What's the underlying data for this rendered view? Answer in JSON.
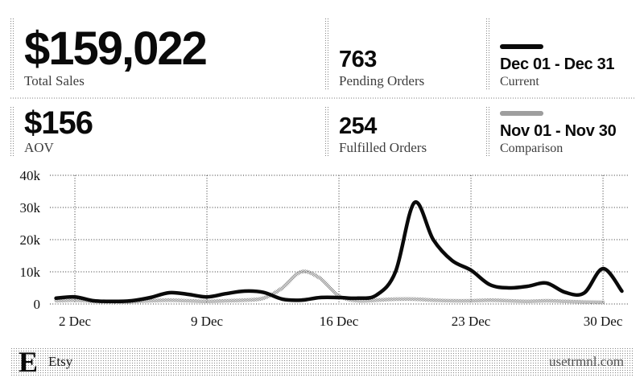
{
  "metrics": [
    {
      "value": "$159,022",
      "label": "Total Sales"
    },
    {
      "value": "763",
      "label": "Pending Orders"
    },
    {
      "value": "$156",
      "label": "AOV"
    },
    {
      "value": "254",
      "label": "Fulfilled Orders"
    }
  ],
  "footer": {
    "logo_letter": "E",
    "app_name": "Etsy",
    "site": "usetrmnl.com"
  },
  "colors": {
    "ink": "#0a0a0a",
    "label_gray": "#3d3d3d",
    "dither_gray": "#8a8a8a",
    "grid": "#333333"
  },
  "chart_data": {
    "type": "line",
    "title": "",
    "xlabel": "",
    "ylabel": "",
    "ylim": [
      0,
      40000
    ],
    "grid": true,
    "y_ticks": [
      {
        "value": 40000,
        "label": "40k"
      },
      {
        "value": 30000,
        "label": "30k"
      },
      {
        "value": 20000,
        "label": "20k"
      },
      {
        "value": 10000,
        "label": "10k"
      },
      {
        "value": 0,
        "label": "0"
      }
    ],
    "x_ticks": [
      {
        "day": 2,
        "label": "2 Dec"
      },
      {
        "day": 9,
        "label": "9 Dec"
      },
      {
        "day": 16,
        "label": "16 Dec"
      },
      {
        "day": 23,
        "label": "23 Dec"
      },
      {
        "day": 30,
        "label": "30 Dec"
      }
    ],
    "series": [
      {
        "name": "Current",
        "range": "Dec 01 - Dec 31",
        "style": "solid",
        "values": [
          1800,
          2200,
          1000,
          800,
          1000,
          2000,
          3500,
          3000,
          2200,
          3200,
          4000,
          3600,
          1500,
          1200,
          2000,
          2000,
          1800,
          2800,
          10000,
          31500,
          20000,
          13500,
          10500,
          6000,
          5000,
          5500,
          6500,
          3600,
          3400,
          11000,
          4000
        ]
      },
      {
        "name": "Comparison",
        "range": "Nov 01 - Nov 30",
        "style": "dithered",
        "values": [
          1000,
          1200,
          800,
          600,
          700,
          1000,
          1200,
          1000,
          800,
          1000,
          1200,
          1800,
          5000,
          10000,
          8000,
          2500,
          1000,
          1200,
          1500,
          1500,
          1200,
          1000,
          1000,
          1200,
          1000,
          800,
          1000,
          800,
          600,
          500
        ]
      }
    ]
  }
}
